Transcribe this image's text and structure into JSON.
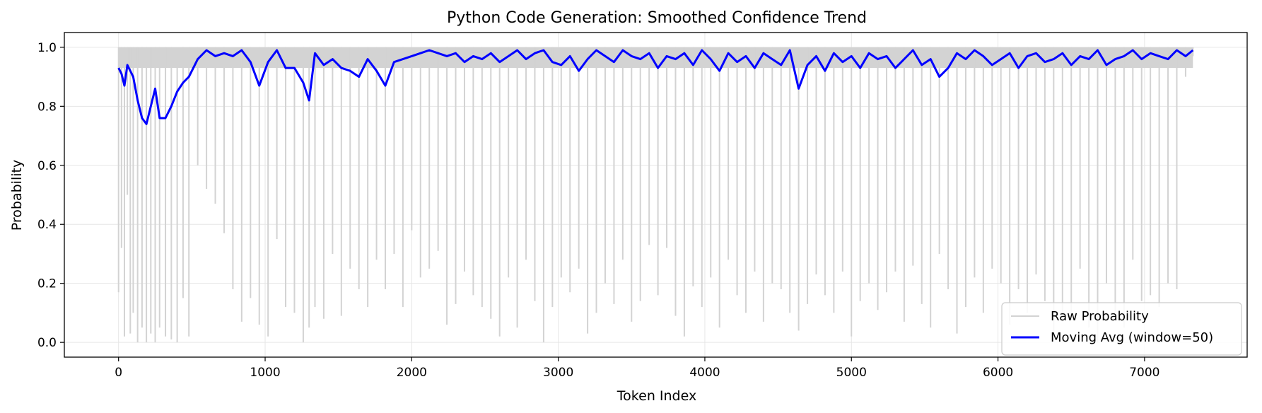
{
  "chart_data": {
    "type": "line",
    "title": "Python Code Generation: Smoothed Confidence Trend",
    "xlabel": "Token Index",
    "ylabel": "Probability",
    "xlim": [
      -370,
      7700
    ],
    "ylim": [
      -0.05,
      1.05
    ],
    "xticks": [
      0,
      1000,
      2000,
      3000,
      4000,
      5000,
      6000,
      7000
    ],
    "yticks": [
      0.0,
      0.2,
      0.4,
      0.6,
      0.8,
      1.0
    ],
    "xtick_labels": [
      "0",
      "1000",
      "2000",
      "3000",
      "4000",
      "5000",
      "6000",
      "7000"
    ],
    "ytick_labels": [
      "0.0",
      "0.2",
      "0.4",
      "0.6",
      "0.8",
      "1.0"
    ],
    "grid": true,
    "legend_position": "lower-right",
    "series": [
      {
        "name": "Raw Probability",
        "color": "#d3d3d3",
        "x": [
          0,
          20,
          40,
          60,
          80,
          100,
          130,
          160,
          190,
          220,
          250,
          280,
          320,
          360,
          400,
          440,
          480,
          540,
          600,
          660,
          720,
          780,
          840,
          900,
          960,
          1020,
          1080,
          1140,
          1200,
          1260,
          1300,
          1340,
          1400,
          1460,
          1520,
          1580,
          1640,
          1700,
          1760,
          1820,
          1880,
          1940,
          2000,
          2060,
          2120,
          2180,
          2240,
          2300,
          2360,
          2420,
          2480,
          2540,
          2600,
          2660,
          2720,
          2780,
          2840,
          2900,
          2960,
          3020,
          3080,
          3140,
          3200,
          3260,
          3320,
          3380,
          3440,
          3500,
          3560,
          3620,
          3680,
          3740,
          3800,
          3860,
          3920,
          3980,
          4040,
          4100,
          4160,
          4220,
          4280,
          4340,
          4400,
          4460,
          4520,
          4580,
          4640,
          4700,
          4760,
          4820,
          4880,
          4940,
          5000,
          5060,
          5120,
          5180,
          5240,
          5300,
          5360,
          5420,
          5480,
          5540,
          5600,
          5660,
          5720,
          5780,
          5840,
          5900,
          5960,
          6020,
          6080,
          6140,
          6200,
          6260,
          6320,
          6380,
          6440,
          6500,
          6560,
          6620,
          6680,
          6740,
          6800,
          6860,
          6920,
          6980,
          7040,
          7100,
          7160,
          7220,
          7280,
          7330
        ],
        "values": [
          0.17,
          0.32,
          0.02,
          0.5,
          0.03,
          0.1,
          0.0,
          0.05,
          0.0,
          0.03,
          0.0,
          0.05,
          0.02,
          0.01,
          0.0,
          0.15,
          0.02,
          0.6,
          0.52,
          0.47,
          0.37,
          0.18,
          0.07,
          0.15,
          0.06,
          0.02,
          0.35,
          0.12,
          0.1,
          0.0,
          0.05,
          0.12,
          0.08,
          0.3,
          0.09,
          0.25,
          0.18,
          0.12,
          0.28,
          0.18,
          0.3,
          0.12,
          0.38,
          0.22,
          0.25,
          0.31,
          0.06,
          0.13,
          0.24,
          0.16,
          0.12,
          0.08,
          0.02,
          0.22,
          0.05,
          0.28,
          0.14,
          0.0,
          0.12,
          0.22,
          0.17,
          0.25,
          0.03,
          0.1,
          0.2,
          0.13,
          0.28,
          0.07,
          0.14,
          0.33,
          0.16,
          0.32,
          0.09,
          0.02,
          0.19,
          0.12,
          0.22,
          0.05,
          0.28,
          0.16,
          0.1,
          0.24,
          0.07,
          0.2,
          0.18,
          0.1,
          0.04,
          0.13,
          0.23,
          0.16,
          0.1,
          0.24,
          0.02,
          0.14,
          0.2,
          0.11,
          0.17,
          0.24,
          0.07,
          0.26,
          0.13,
          0.05,
          0.3,
          0.18,
          0.03,
          0.12,
          0.22,
          0.1,
          0.25,
          0.2,
          0.06,
          0.18,
          0.1,
          0.23,
          0.14,
          0.02,
          0.07,
          0.09,
          0.25,
          0.05,
          0.0,
          0.2,
          0.1,
          0.05,
          0.28,
          0.14,
          0.16,
          0.12,
          0.2,
          0.18,
          0.9,
          0.97
        ]
      },
      {
        "name": "Moving Avg (window=50)",
        "color": "#0000ff",
        "x": [
          0,
          20,
          40,
          60,
          80,
          100,
          130,
          160,
          190,
          220,
          250,
          280,
          320,
          360,
          400,
          440,
          480,
          540,
          600,
          660,
          720,
          780,
          840,
          900,
          960,
          1020,
          1080,
          1140,
          1200,
          1260,
          1300,
          1340,
          1400,
          1460,
          1520,
          1580,
          1640,
          1700,
          1760,
          1820,
          1880,
          1940,
          2000,
          2060,
          2120,
          2180,
          2240,
          2300,
          2360,
          2420,
          2480,
          2540,
          2600,
          2660,
          2720,
          2780,
          2840,
          2900,
          2960,
          3020,
          3080,
          3140,
          3200,
          3260,
          3320,
          3380,
          3440,
          3500,
          3560,
          3620,
          3680,
          3740,
          3800,
          3860,
          3920,
          3980,
          4040,
          4100,
          4160,
          4220,
          4280,
          4340,
          4400,
          4460,
          4520,
          4580,
          4640,
          4700,
          4760,
          4820,
          4880,
          4940,
          5000,
          5060,
          5120,
          5180,
          5240,
          5300,
          5360,
          5420,
          5480,
          5540,
          5600,
          5660,
          5720,
          5780,
          5840,
          5900,
          5960,
          6020,
          6080,
          6140,
          6200,
          6260,
          6320,
          6380,
          6440,
          6500,
          6560,
          6620,
          6680,
          6740,
          6800,
          6860,
          6920,
          6980,
          7040,
          7100,
          7160,
          7220,
          7280,
          7330
        ],
        "values": [
          0.93,
          0.91,
          0.87,
          0.94,
          0.92,
          0.9,
          0.82,
          0.76,
          0.74,
          0.8,
          0.86,
          0.76,
          0.76,
          0.8,
          0.85,
          0.88,
          0.9,
          0.96,
          0.99,
          0.97,
          0.98,
          0.97,
          0.99,
          0.95,
          0.87,
          0.95,
          0.99,
          0.93,
          0.93,
          0.88,
          0.82,
          0.98,
          0.94,
          0.96,
          0.93,
          0.92,
          0.9,
          0.96,
          0.92,
          0.87,
          0.95,
          0.96,
          0.97,
          0.98,
          0.99,
          0.98,
          0.97,
          0.98,
          0.95,
          0.97,
          0.96,
          0.98,
          0.95,
          0.97,
          0.99,
          0.96,
          0.98,
          0.99,
          0.95,
          0.94,
          0.97,
          0.92,
          0.96,
          0.99,
          0.97,
          0.95,
          0.99,
          0.97,
          0.96,
          0.98,
          0.93,
          0.97,
          0.96,
          0.98,
          0.94,
          0.99,
          0.96,
          0.92,
          0.98,
          0.95,
          0.97,
          0.93,
          0.98,
          0.96,
          0.94,
          0.99,
          0.86,
          0.94,
          0.97,
          0.92,
          0.98,
          0.95,
          0.97,
          0.93,
          0.98,
          0.96,
          0.97,
          0.93,
          0.96,
          0.99,
          0.94,
          0.96,
          0.9,
          0.93,
          0.98,
          0.96,
          0.99,
          0.97,
          0.94,
          0.96,
          0.98,
          0.93,
          0.97,
          0.98,
          0.95,
          0.96,
          0.98,
          0.94,
          0.97,
          0.96,
          0.99,
          0.94,
          0.96,
          0.97,
          0.99,
          0.96,
          0.98,
          0.97,
          0.96,
          0.99,
          0.97,
          0.99
        ]
      }
    ]
  }
}
